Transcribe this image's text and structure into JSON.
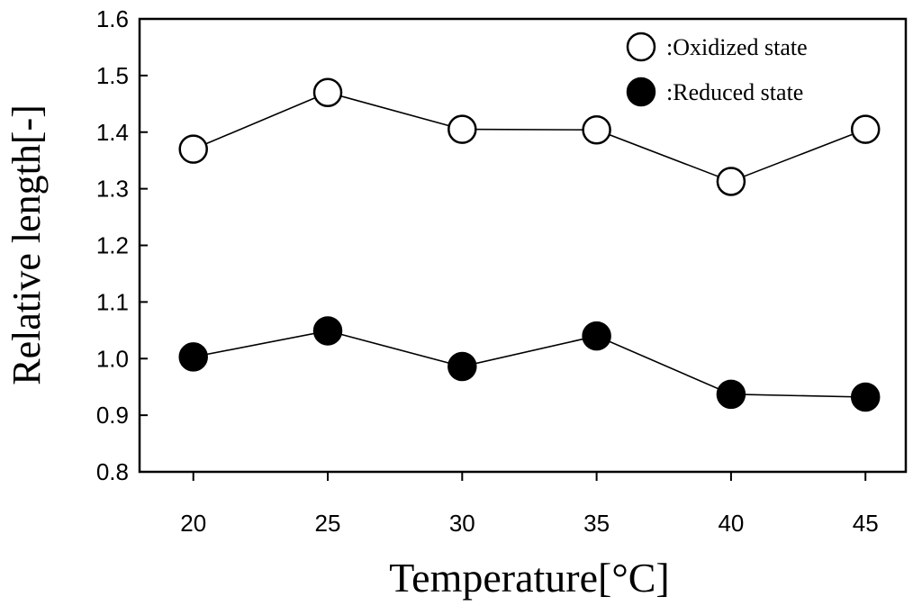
{
  "chart_data": {
    "type": "line",
    "xlabel": "Temperature[°C]",
    "ylabel": "Relative length[-]",
    "x": [
      20,
      25,
      30,
      35,
      40,
      45
    ],
    "xlim": [
      18,
      46.5
    ],
    "ylim": [
      0.8,
      1.6
    ],
    "yticks": [
      "0.8",
      "0.9",
      "1.0",
      "1.1",
      "1.2",
      "1.3",
      "1.4",
      "1.5",
      "1.6"
    ],
    "grid": false,
    "legend_position": "top-right",
    "series": [
      {
        "name": ":Oxidized state",
        "marker": "open-circle",
        "values": [
          1.37,
          1.47,
          1.405,
          1.404,
          1.313,
          1.405
        ]
      },
      {
        "name": ":Reduced state",
        "marker": "filled-circle",
        "values": [
          1.003,
          1.049,
          0.986,
          1.04,
          0.937,
          0.932
        ]
      }
    ]
  }
}
